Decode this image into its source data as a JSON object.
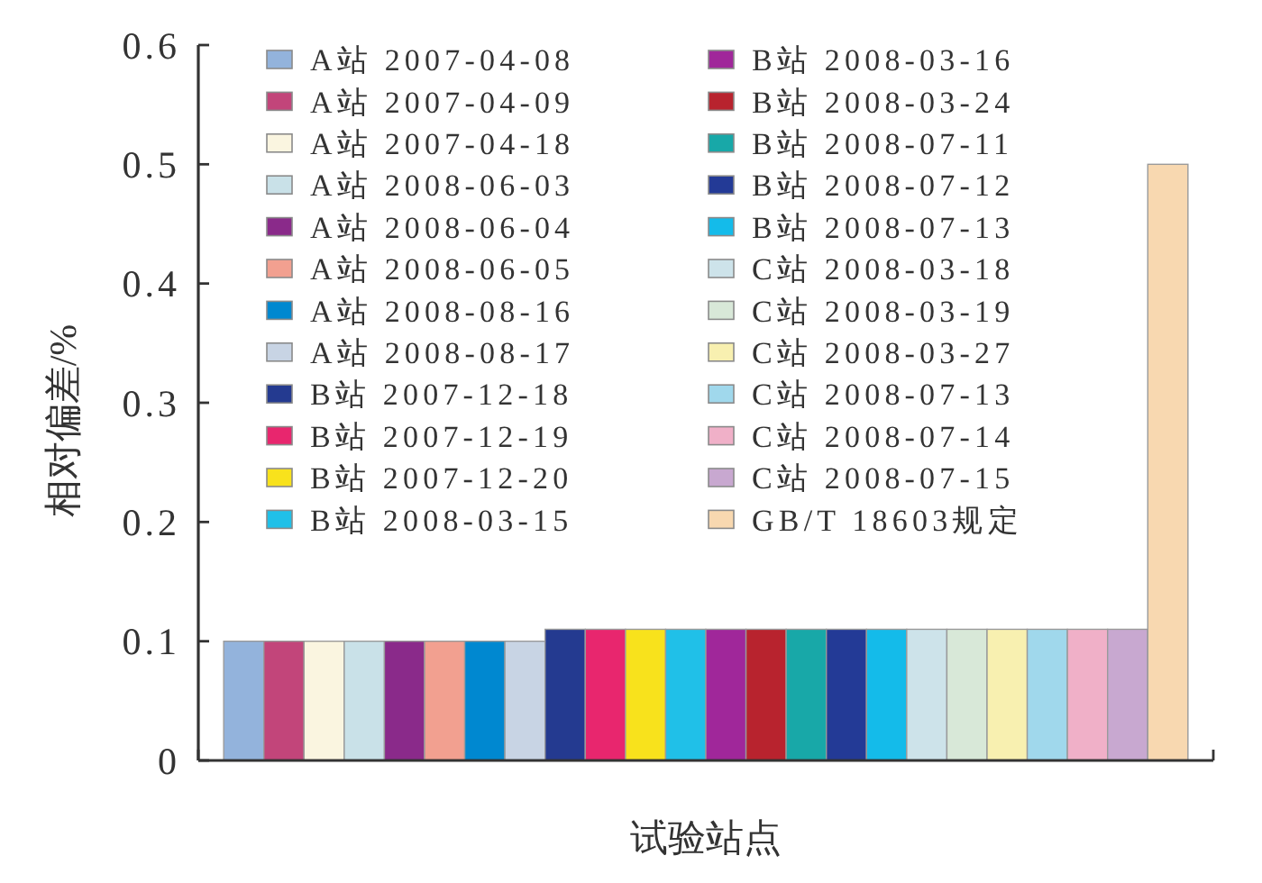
{
  "chart_data": {
    "type": "bar",
    "xlabel": "试验站点",
    "ylabel": "相对偏差/%",
    "categories": [
      null
    ],
    "tick_labels": "y",
    "ylim": [
      0,
      0.6
    ],
    "yticks": [
      0,
      0.1,
      0.2,
      0.3,
      0.4,
      0.5,
      0.6
    ],
    "legend": "top left",
    "series": [
      {
        "name": "A站 2007-04-08",
        "color": "#93b3dc",
        "values": [
          0.1
        ]
      },
      {
        "name": "A站 2007-04-09",
        "color": "#c2457a",
        "values": [
          0.1
        ]
      },
      {
        "name": "A站 2007-04-18",
        "color": "#faf5e0",
        "values": [
          0.1
        ]
      },
      {
        "name": "A站 2008-06-03",
        "color": "#c9e1e8",
        "values": [
          0.1
        ]
      },
      {
        "name": "A站 2008-06-04",
        "color": "#8a2a8a",
        "values": [
          0.1
        ]
      },
      {
        "name": "A站 2008-06-05",
        "color": "#f2a090",
        "values": [
          0.1
        ]
      },
      {
        "name": "A站 2008-08-16",
        "color": "#0088d0",
        "values": [
          0.1
        ]
      },
      {
        "name": "A站 2008-08-17",
        "color": "#c8d4e4",
        "values": [
          0.1
        ]
      },
      {
        "name": "B站 2007-12-18",
        "color": "#243a90",
        "values": [
          0.11
        ]
      },
      {
        "name": "B站 2007-12-19",
        "color": "#e8266e",
        "values": [
          0.11
        ]
      },
      {
        "name": "B站 2007-12-20",
        "color": "#f8e21c",
        "values": [
          0.11
        ]
      },
      {
        "name": "B站 2008-03-15",
        "color": "#20c0e8",
        "values": [
          0.11
        ]
      },
      {
        "name": "B站 2008-03-16",
        "color": "#a0279a",
        "values": [
          0.11
        ]
      },
      {
        "name": "B站 2008-03-24",
        "color": "#b8232e",
        "values": [
          0.11
        ]
      },
      {
        "name": "B站 2008-07-11",
        "color": "#18a8a8",
        "values": [
          0.11
        ]
      },
      {
        "name": "B站 2008-07-12",
        "color": "#233a96",
        "values": [
          0.11
        ]
      },
      {
        "name": "B站 2008-07-13",
        "color": "#14bbea",
        "values": [
          0.11
        ]
      },
      {
        "name": "C站 2008-03-18",
        "color": "#cde3ea",
        "values": [
          0.11
        ]
      },
      {
        "name": "C站 2008-03-19",
        "color": "#d8e8d8",
        "values": [
          0.11
        ]
      },
      {
        "name": "C站 2008-03-27",
        "color": "#f8f0b0",
        "values": [
          0.11
        ]
      },
      {
        "name": "C站 2008-07-13",
        "color": "#a0d8ec",
        "values": [
          0.11
        ]
      },
      {
        "name": "C站 2008-07-14",
        "color": "#f0b0c8",
        "values": [
          0.11
        ]
      },
      {
        "name": "C站 2008-07-15",
        "color": "#c8a8d0",
        "values": [
          0.11
        ]
      },
      {
        "name": "GB/T 18603规定",
        "color": "#f8d8b0",
        "values": [
          0.5
        ]
      }
    ]
  }
}
